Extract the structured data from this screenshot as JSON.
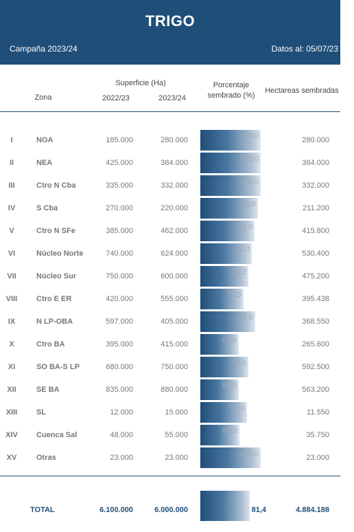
{
  "header": {
    "title": "TRIGO",
    "campaign": "Campaña 2023/24",
    "data_date": "Datos al: 05/07/23"
  },
  "columns": {
    "zone": "Zona",
    "surface_group": "Superficie (Ha)",
    "year_prev": "2022/23",
    "year_curr": "2023/24",
    "pct_line1": "Porcentaje",
    "pct_line2": "sembrado (%)",
    "hectares_sown": "Hectareas sembradas"
  },
  "rows": [
    {
      "num": "I",
      "zone": "NOA",
      "s2022": "185.000",
      "s2023": "280.000",
      "pct": "100,0",
      "pct_value": 100.0,
      "ha": "280.000"
    },
    {
      "num": "II",
      "zone": "NEA",
      "s2022": "425.000",
      "s2023": "384.000",
      "pct": "100,0",
      "pct_value": 100.0,
      "ha": "384.000"
    },
    {
      "num": "III",
      "zone": "Ctro N Cba",
      "s2022": "335.000",
      "s2023": "332.000",
      "pct": "100,0",
      "pct_value": 100.0,
      "ha": "332.000"
    },
    {
      "num": "IV",
      "zone": "S Cba",
      "s2022": "270.000",
      "s2023": "220.000",
      "pct": "96,0",
      "pct_value": 96.0,
      "ha": "211.200"
    },
    {
      "num": "V",
      "zone": "Ctro N SFe",
      "s2022": "385.000",
      "s2023": "462.000",
      "pct": "90,0",
      "pct_value": 90.0,
      "ha": "415.800"
    },
    {
      "num": "VI",
      "zone": "Núcleo Norte",
      "s2022": "740.000",
      "s2023": "624.000",
      "pct": "85,0",
      "pct_value": 85.0,
      "ha": "530.400"
    },
    {
      "num": "VII",
      "zone": "Núcleo Sur",
      "s2022": "750.000",
      "s2023": "600.000",
      "pct": "79,2",
      "pct_value": 79.2,
      "ha": "475.200"
    },
    {
      "num": "VIII",
      "zone": "Ctro E ER",
      "s2022": "420.000",
      "s2023": "555.000",
      "pct": "71,3",
      "pct_value": 71.3,
      "ha": "395.438"
    },
    {
      "num": "IX",
      "zone": "N LP-OBA",
      "s2022": "597.000",
      "s2023": "405.000",
      "pct": "91,0",
      "pct_value": 91.0,
      "ha": "368.550"
    },
    {
      "num": "X",
      "zone": "Ctro BA",
      "s2022": "395.000",
      "s2023": "415.000",
      "pct": "64,0",
      "pct_value": 64.0,
      "ha": "265.600"
    },
    {
      "num": "XI",
      "zone": "SO BA-S LP",
      "s2022": "680.000",
      "s2023": "750.000",
      "pct": "79,0",
      "pct_value": 79.0,
      "ha": "592.500"
    },
    {
      "num": "XII",
      "zone": "SE BA",
      "s2022": "835.000",
      "s2023": "880.000",
      "pct": "64,0",
      "pct_value": 64.0,
      "ha": "563.200"
    },
    {
      "num": "XIII",
      "zone": "SL",
      "s2022": "12.000",
      "s2023": "15.000",
      "pct": "77,0",
      "pct_value": 77.0,
      "ha": "11.550"
    },
    {
      "num": "XIV",
      "zone": "Cuenca Sal",
      "s2022": "48.000",
      "s2023": "55.000",
      "pct": "65,0",
      "pct_value": 65.0,
      "ha": "35.750"
    },
    {
      "num": "XV",
      "zone": "Otras",
      "s2022": "23.000",
      "s2023": "23.000",
      "pct": "100,0",
      "pct_value": 100.0,
      "ha": "23.000"
    }
  ],
  "total": {
    "label": "TOTAL",
    "s2022": "6.100.000",
    "s2023": "6.000.000",
    "pct": "81,4",
    "pct_value": 81.4,
    "ha": "4.884.188"
  }
}
